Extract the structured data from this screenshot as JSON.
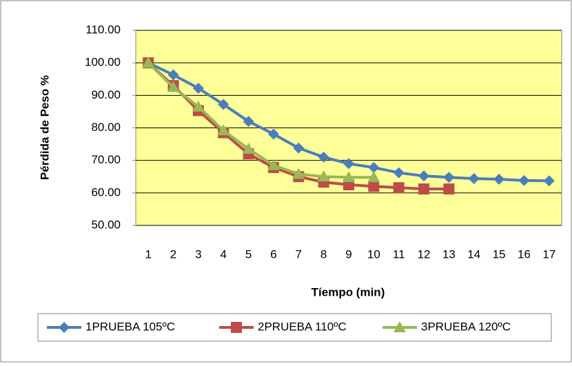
{
  "chart_data": {
    "type": "line",
    "y_label": "Pérdida de Peso %",
    "x_label": "Tíempo (min)",
    "categories": [
      1,
      2,
      3,
      4,
      5,
      6,
      7,
      8,
      9,
      10,
      11,
      12,
      13,
      14,
      15,
      16,
      17
    ],
    "series": [
      {
        "name": "1PRUEBA 105ºC",
        "color": "#4a7ebb",
        "marker": "diamond",
        "values": [
          100,
          96.3,
          92.2,
          87.2,
          82,
          78.1,
          73.8,
          71,
          69,
          67.8,
          66.2,
          65.2,
          64.8,
          64.4,
          64.2,
          63.8,
          63.7
        ]
      },
      {
        "name": "2PRUEBA 110ºC",
        "color": "#be4b48",
        "marker": "square",
        "values": [
          100,
          93,
          85.3,
          78.5,
          72,
          67.8,
          65,
          63.3,
          62.5,
          62,
          61.6,
          61.2,
          61.2,
          null,
          null,
          null,
          null
        ]
      },
      {
        "name": "3PRUEBA 120ºC",
        "color": "#98b954",
        "marker": "triangle",
        "values": [
          100,
          92.5,
          86.5,
          79.2,
          73.5,
          68.5,
          65.8,
          65,
          64.8,
          64.8,
          null,
          null,
          null,
          null,
          null,
          null,
          null
        ]
      }
    ],
    "ylim": [
      50,
      110
    ],
    "yticks": [
      {
        "value": 50,
        "label": "50.00"
      },
      {
        "value": 60,
        "label": "60.00"
      },
      {
        "value": 70,
        "label": "70.00"
      },
      {
        "value": 80,
        "label": "80.00"
      },
      {
        "value": 90,
        "label": "90.00"
      },
      {
        "value": 100,
        "label": "100.00"
      },
      {
        "value": 110,
        "label": "110.00"
      }
    ],
    "grid": true,
    "plot_background": "#ffff99",
    "legend": "bottom"
  }
}
